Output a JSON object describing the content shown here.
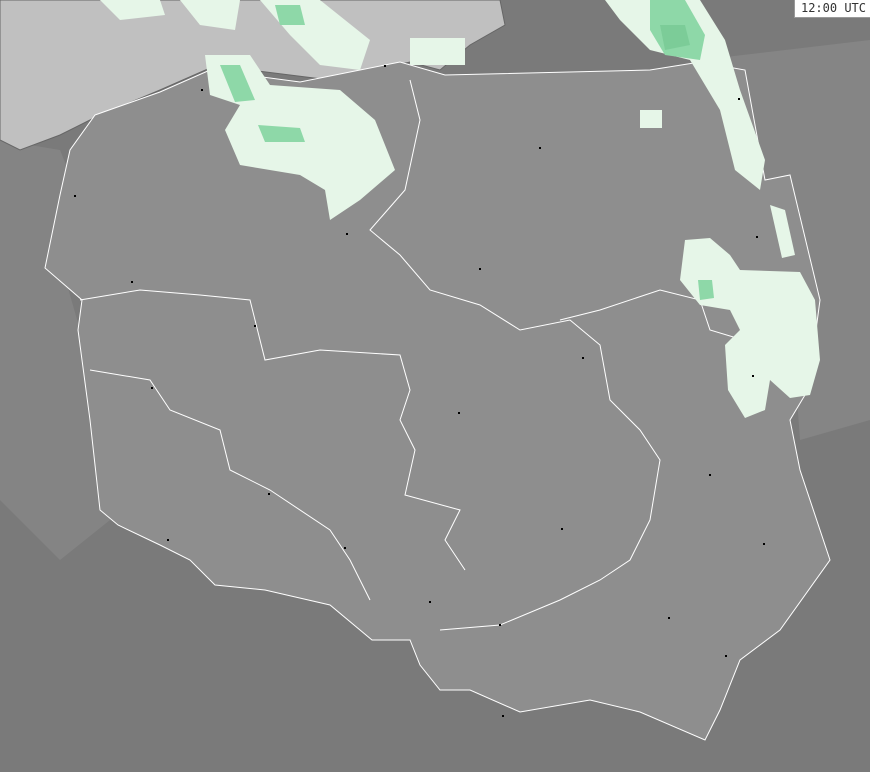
{
  "map": {
    "time_label": "12:00 UTC",
    "colors": {
      "background_land": "#7a7a7a",
      "neighbor_land": "#858585",
      "poland": "#8e8e8e",
      "sea": "#c0c0c0",
      "border": "#ffffff",
      "precip_light": "#e6f6e8",
      "precip_moderate": "#8ed8a8",
      "precip_heavy": "#7ccc98",
      "city": "#000000"
    }
  }
}
